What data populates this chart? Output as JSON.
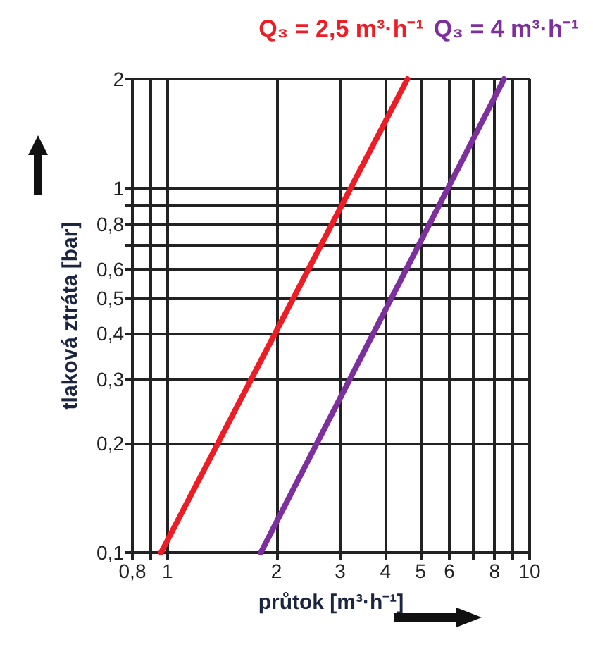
{
  "chart_data": {
    "type": "line",
    "xlabel": "průtok [m³·h⁻¹]",
    "ylabel": "tlaková ztráta [bar]",
    "log": "xy",
    "grid": true,
    "legend": "top",
    "marker": "none",
    "line_style": "solid",
    "xlim": [
      0.8,
      10
    ],
    "ylim": [
      0.1,
      2
    ],
    "xticks": [
      {
        "value": 0.8,
        "label": "0,8"
      },
      {
        "value": 0.9,
        "label": null
      },
      1,
      2,
      3,
      4,
      5,
      6,
      {
        "value": 7,
        "label": null
      },
      8,
      {
        "value": 9,
        "label": null
      },
      10
    ],
    "yticks": [
      {
        "value": 0.1,
        "label": "0,1"
      },
      {
        "value": 0.2,
        "label": "0,2"
      },
      {
        "value": 0.3,
        "label": "0,3"
      },
      {
        "value": 0.4,
        "label": "0,4"
      },
      {
        "value": 0.5,
        "label": "0,5"
      },
      {
        "value": 0.6,
        "label": "0,6"
      },
      {
        "value": 0.7,
        "label": null
      },
      {
        "value": 0.8,
        "label": "0,8"
      },
      {
        "value": 0.9,
        "label": null
      },
      1,
      2
    ],
    "series": [
      {
        "name": "Q₃ = 2,5 m³·h⁻¹",
        "color": "#ee1c25",
        "x": [
          0.96,
          4.6
        ],
        "values": [
          0.1,
          2
        ]
      },
      {
        "name": "Q₃ = 4 m³·h⁻¹",
        "color": "#7d2f9e",
        "x": [
          1.81,
          8.5
        ],
        "values": [
          0.1,
          2
        ]
      }
    ]
  }
}
